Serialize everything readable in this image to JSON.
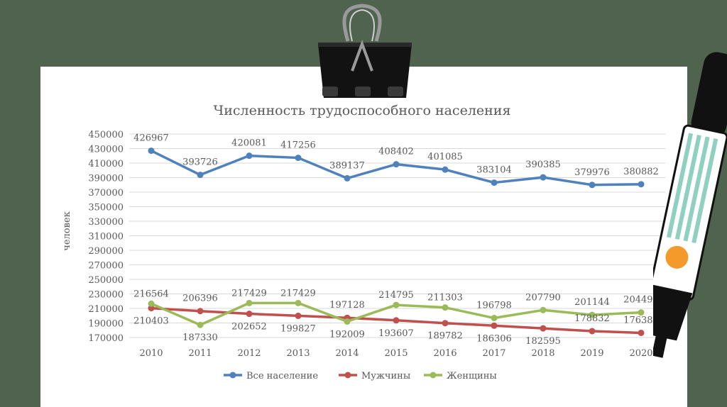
{
  "chart_data": {
    "type": "line",
    "title": "Численность трудоспособного населения",
    "ylabel": "человек",
    "xlabel": "",
    "categories": [
      "2010",
      "2011",
      "2012",
      "2013",
      "2014",
      "2015",
      "2016",
      "2017",
      "2018",
      "2019",
      "2020"
    ],
    "ylim": [
      170000,
      450000
    ],
    "yticks": [
      170000,
      190000,
      210000,
      230000,
      250000,
      270000,
      290000,
      310000,
      330000,
      350000,
      370000,
      390000,
      410000,
      430000,
      450000
    ],
    "grid": "horizontal",
    "legend_position": "bottom",
    "series": [
      {
        "name": "Все население",
        "color": "#4f81bd",
        "values": [
          426967,
          393726,
          420081,
          417256,
          389137,
          408402,
          401085,
          383104,
          390385,
          379976,
          380882
        ]
      },
      {
        "name": "Мужчины",
        "color": "#c0504d",
        "values": [
          210403,
          206396,
          202652,
          199827,
          197128,
          193607,
          189782,
          186306,
          182595,
          178832,
          176384
        ]
      },
      {
        "name": "Женщины",
        "color": "#9bbb59",
        "values": [
          216564,
          187330,
          217429,
          217429,
          192009,
          214795,
          211303,
          196798,
          207790,
          201144,
          204498
        ]
      }
    ],
    "labels": {
      "all": [
        "426967",
        "393726",
        "420081",
        "417256",
        "389137",
        "408402",
        "401085",
        "383104",
        "390385",
        "379976",
        "380882"
      ],
      "men": [
        "210403",
        "206396",
        "202652",
        "199827",
        "197128",
        "193607",
        "189782",
        "186306",
        "182595",
        "178832",
        "176384"
      ],
      "women": [
        "216564",
        "187330",
        "217429",
        "217429",
        "192009",
        "214795",
        "211303",
        "196798",
        "207790",
        "201144",
        "204498"
      ]
    }
  }
}
